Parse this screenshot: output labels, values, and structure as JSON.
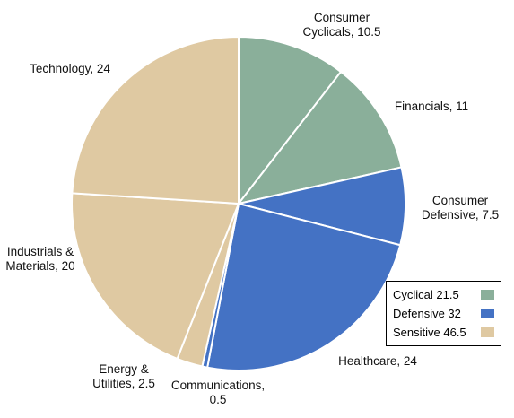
{
  "colors": {
    "cyclical": "#8aaf9a",
    "defensive": "#4472c4",
    "sensitive": "#dfc9a2",
    "separator": "#ffffff"
  },
  "chart_data": {
    "type": "pie",
    "title": "",
    "start_angle_deg": 0,
    "direction": "clockwise",
    "slices": [
      {
        "label_lines": [
          "Consumer",
          "Cyclicals, 10.5"
        ],
        "value": 10.5,
        "group": "cyclical"
      },
      {
        "label_lines": [
          "Financials, 11"
        ],
        "value": 11,
        "group": "cyclical"
      },
      {
        "label_lines": [
          "Consumer",
          "Defensive, 7.5"
        ],
        "value": 7.5,
        "group": "defensive"
      },
      {
        "label_lines": [
          "Healthcare, 24"
        ],
        "value": 24,
        "group": "defensive"
      },
      {
        "label_lines": [
          "Communications,",
          "0.5"
        ],
        "value": 0.5,
        "group": "defensive"
      },
      {
        "label_lines": [
          "Energy &",
          "Utilities, 2.5"
        ],
        "value": 2.5,
        "group": "sensitive"
      },
      {
        "label_lines": [
          "Industrials &",
          "Materials, 20"
        ],
        "value": 20,
        "group": "sensitive"
      },
      {
        "label_lines": [
          "Technology, 24"
        ],
        "value": 24,
        "group": "sensitive"
      }
    ],
    "legend": {
      "placement": "bottom-right",
      "entries": [
        {
          "label": "Cyclical 21.5",
          "group": "cyclical"
        },
        {
          "label": "Defensive 32",
          "group": "defensive"
        },
        {
          "label": "Sensitive 46.5",
          "group": "sensitive"
        }
      ]
    }
  }
}
